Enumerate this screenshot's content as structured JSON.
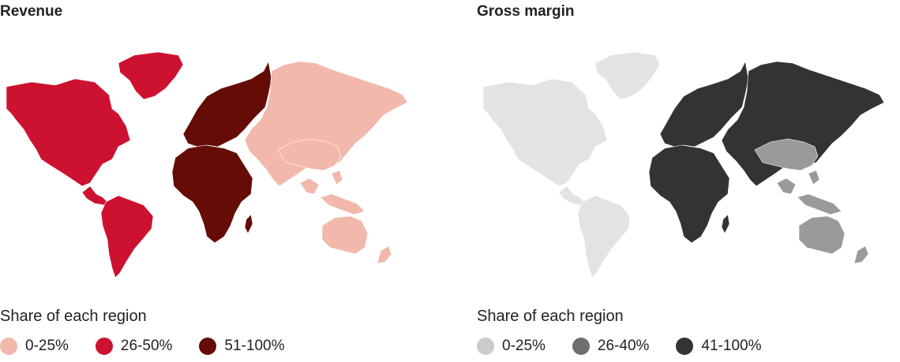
{
  "maps": [
    {
      "title": "Revenue",
      "legend_title": "Share of each region",
      "legend": [
        {
          "label": "0-25%",
          "color": "#f2b8ab"
        },
        {
          "label": "26-50%",
          "color": "#cc1230"
        },
        {
          "label": "51-100%",
          "color": "#640c05"
        }
      ],
      "regions": {
        "north_america": "#cc1230",
        "greenland": "#cc1230",
        "south_america": "#cc1230",
        "europe": "#640c05",
        "africa": "#640c05",
        "asia": "#f2b8ab",
        "china": "#f2b8ab",
        "southeast_asia": "#f2b8ab",
        "oceania": "#f2b8ab"
      }
    },
    {
      "title": "Gross margin",
      "legend_title": "Share of each region",
      "legend": [
        {
          "label": "0-25%",
          "color": "#cccccc"
        },
        {
          "label": "26-40%",
          "color": "#6f6f6f"
        },
        {
          "label": "41-100%",
          "color": "#333333"
        }
      ],
      "regions": {
        "north_america": "#e3e3e3",
        "greenland": "#e3e3e3",
        "south_america": "#e3e3e3",
        "europe": "#333333",
        "africa": "#333333",
        "asia": "#333333",
        "china": "#9a9a9a",
        "southeast_asia": "#9a9a9a",
        "oceania": "#9a9a9a"
      }
    }
  ]
}
